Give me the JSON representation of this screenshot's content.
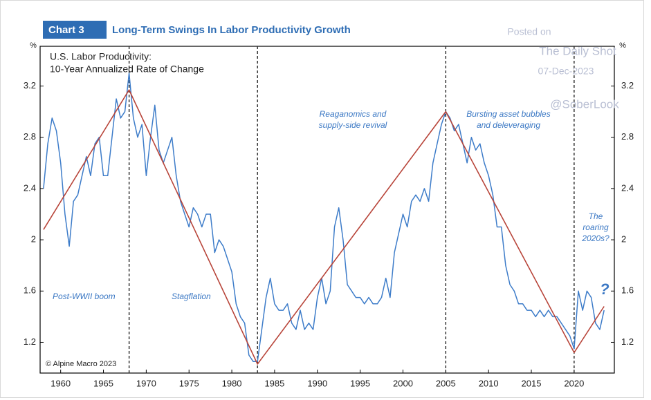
{
  "header": {
    "tag": "Chart 3",
    "title": "Long-Term Swings In Labor Productivity Growth"
  },
  "watermark": [
    "Posted on",
    "The Daily Shot",
    "07-Dec-2023",
    "@SoberLook"
  ],
  "chart_data": {
    "type": "line",
    "title": [
      "U.S. Labor Productivity:",
      "10-Year Annualized Rate of Change"
    ],
    "y_unit": "%",
    "y2_unit": "%",
    "source": "© Alpine Macro 2023",
    "annotations": [
      [
        "Post-WWII boom"
      ],
      [
        "Stagflation"
      ],
      [
        "Reaganomics and",
        "supply-side revival"
      ],
      [
        "Bursting asset bubbles",
        "and deleveraging"
      ],
      [
        "The",
        "roaring",
        "2020s?"
      ],
      [
        "?"
      ]
    ],
    "xlim": [
      1957.6,
      2024.7
    ],
    "xticks": [
      1960,
      1965,
      1970,
      1975,
      1980,
      1985,
      1990,
      1995,
      2000,
      2005,
      2010,
      2015,
      2020
    ],
    "ylim": [
      0.96,
      3.51
    ],
    "yticks": [
      1.2,
      1.6,
      2.0,
      2.4,
      2.8,
      3.2
    ],
    "y2lim": [
      0.96,
      3.51
    ],
    "y2ticks": [
      1.2,
      1.6,
      2.0,
      2.4,
      2.8,
      3.2
    ],
    "vlines": [
      1968,
      1983,
      2005,
      2020
    ],
    "series": [
      {
        "name": "Productivity",
        "color": "#3d7cc9",
        "x": [
          1958,
          1958.5,
          1959,
          1959.5,
          1960,
          1960.5,
          1961,
          1961.5,
          1962,
          1962.5,
          1963,
          1963.5,
          1964,
          1964.5,
          1965,
          1965.5,
          1966,
          1966.5,
          1967,
          1967.5,
          1968,
          1968.5,
          1969,
          1969.5,
          1970,
          1970.5,
          1971,
          1971.5,
          1972,
          1972.5,
          1973,
          1973.5,
          1974,
          1974.5,
          1975,
          1975.5,
          1976,
          1976.5,
          1977,
          1977.5,
          1978,
          1978.5,
          1979,
          1979.5,
          1980,
          1980.5,
          1981,
          1981.5,
          1982,
          1982.5,
          1983,
          1983.5,
          1984,
          1984.5,
          1985,
          1985.5,
          1986,
          1986.5,
          1987,
          1987.5,
          1988,
          1988.5,
          1989,
          1989.5,
          1990,
          1990.5,
          1991,
          1991.5,
          1992,
          1992.5,
          1993,
          1993.5,
          1994,
          1994.5,
          1995,
          1995.5,
          1996,
          1996.5,
          1997,
          1997.5,
          1998,
          1998.5,
          1999,
          1999.5,
          2000,
          2000.5,
          2001,
          2001.5,
          2002,
          2002.5,
          2003,
          2003.5,
          2004,
          2004.5,
          2005,
          2005.5,
          2006,
          2006.5,
          2007,
          2007.5,
          2008,
          2008.5,
          2009,
          2009.5,
          2010,
          2010.5,
          2011,
          2011.5,
          2012,
          2012.5,
          2013,
          2013.5,
          2014,
          2014.5,
          2015,
          2015.5,
          2016,
          2016.5,
          2017,
          2017.5,
          2018,
          2018.5,
          2019,
          2019.5,
          2020,
          2020.5,
          2021,
          2021.5,
          2022,
          2022.5,
          2023,
          2023.5
        ],
        "values": [
          2.4,
          2.75,
          2.95,
          2.85,
          2.6,
          2.2,
          1.95,
          2.3,
          2.35,
          2.5,
          2.65,
          2.5,
          2.75,
          2.8,
          2.5,
          2.5,
          2.8,
          3.1,
          2.95,
          3.0,
          3.3,
          2.95,
          2.8,
          2.9,
          2.5,
          2.8,
          3.05,
          2.7,
          2.6,
          2.7,
          2.8,
          2.5,
          2.3,
          2.2,
          2.1,
          2.25,
          2.2,
          2.1,
          2.2,
          2.2,
          1.9,
          2.0,
          1.95,
          1.85,
          1.75,
          1.5,
          1.4,
          1.35,
          1.1,
          1.05,
          1.05,
          1.3,
          1.55,
          1.7,
          1.5,
          1.45,
          1.45,
          1.5,
          1.35,
          1.3,
          1.45,
          1.3,
          1.35,
          1.3,
          1.55,
          1.7,
          1.5,
          1.6,
          2.1,
          2.25,
          2.0,
          1.65,
          1.6,
          1.55,
          1.55,
          1.5,
          1.55,
          1.5,
          1.5,
          1.55,
          1.7,
          1.55,
          1.9,
          2.05,
          2.2,
          2.1,
          2.3,
          2.35,
          2.3,
          2.4,
          2.3,
          2.6,
          2.75,
          2.9,
          3.0,
          2.95,
          2.85,
          2.9,
          2.75,
          2.6,
          2.8,
          2.7,
          2.75,
          2.6,
          2.5,
          2.35,
          2.1,
          2.1,
          1.8,
          1.65,
          1.6,
          1.5,
          1.5,
          1.45,
          1.45,
          1.4,
          1.45,
          1.4,
          1.45,
          1.4,
          1.4,
          1.35,
          1.3,
          1.25,
          1.15,
          1.6,
          1.45,
          1.6,
          1.55,
          1.35,
          1.3,
          1.45
        ]
      },
      {
        "name": "Trend",
        "color": "#b8453a",
        "x": [
          1958,
          1968,
          1983,
          2005,
          2020,
          2023.5
        ],
        "values": [
          2.08,
          3.17,
          1.03,
          3.0,
          1.12,
          1.48
        ]
      }
    ]
  }
}
